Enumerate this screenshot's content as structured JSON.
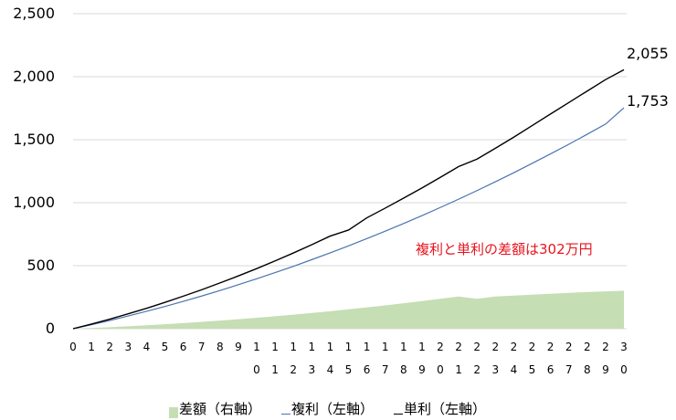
{
  "chart_data": {
    "type": "line",
    "title": "",
    "xlabel": "",
    "ylabel": "",
    "ylim": [
      0,
      2500
    ],
    "yticks": [
      "2,500",
      "2,000",
      "1,500",
      "1,000",
      "500",
      "0"
    ],
    "x": [
      0,
      1,
      2,
      3,
      4,
      5,
      6,
      7,
      8,
      9,
      10,
      11,
      12,
      13,
      14,
      15,
      16,
      17,
      18,
      19,
      20,
      21,
      22,
      23,
      24,
      25,
      26,
      27,
      28,
      29,
      30
    ],
    "series": [
      {
        "name": "差額（右軸）",
        "type": "area",
        "color": "#c5deb4",
        "axis": "right",
        "values": [
          0,
          5,
          12,
          19,
          27,
          35,
          44,
          54,
          64,
          75,
          87,
          99,
          111,
          125,
          139,
          154,
          169,
          185,
          202,
          219,
          237,
          255,
          237,
          255,
          263,
          270,
          277,
          284,
          291,
          296,
          302
        ]
      },
      {
        "name": "複利（左軸）",
        "type": "line",
        "color": "#4a73b0",
        "axis": "left",
        "values": [
          0,
          31,
          65,
          101,
          138,
          176,
          217,
          259,
          303,
          349,
          396,
          445,
          495,
          548,
          602,
          657,
          715,
          774,
          835,
          897,
          962,
          1028,
          1096,
          1166,
          1238,
          1312,
          1387,
          1464,
          1543,
          1624,
          1753
        ]
      },
      {
        "name": "単利（左軸）",
        "type": "line",
        "color": "#000000",
        "axis": "left",
        "values": [
          0,
          37,
          76,
          118,
          162,
          209,
          258,
          309,
          363,
          419,
          477,
          538,
          601,
          667,
          735,
          783,
          880,
          957,
          1036,
          1117,
          1201,
          1287,
          1346,
          1432,
          1520,
          1612,
          1704,
          1795,
          1886,
          1977,
          2055
        ]
      }
    ],
    "end_labels": [
      "2,055",
      "1,753"
    ],
    "annotation": "複利と単利の差額は302万円",
    "grid": true,
    "legend_position": "bottom"
  },
  "xticks_row1": [
    "0",
    "1",
    "2",
    "3",
    "4",
    "5",
    "6",
    "7",
    "8",
    "9",
    "1",
    "1",
    "1",
    "1",
    "1",
    "1",
    "1",
    "1",
    "1",
    "1",
    "2",
    "2",
    "2",
    "2",
    "2",
    "2",
    "2",
    "2",
    "2",
    "2",
    "3"
  ],
  "xticks_row2": [
    "",
    "",
    "",
    "",
    "",
    "",
    "",
    "",
    "",
    "",
    "0",
    "1",
    "2",
    "3",
    "4",
    "5",
    "6",
    "7",
    "8",
    "9",
    "0",
    "1",
    "2",
    "3",
    "4",
    "5",
    "6",
    "7",
    "8",
    "9",
    "0"
  ],
  "legend": {
    "diff": "差額（右軸）",
    "compound": "複利（左軸）",
    "simple": "単利（左軸）"
  }
}
